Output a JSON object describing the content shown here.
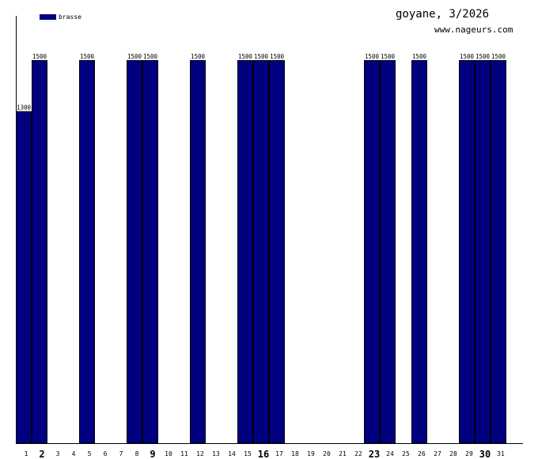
{
  "title": "goyane, 3/2026",
  "site": "www.nageurs.com",
  "chart_data": {
    "type": "bar",
    "series": [
      {
        "name": "brasse",
        "color": "#000080",
        "values": [
          1300,
          1500,
          0,
          0,
          1500,
          0,
          0,
          1500,
          1500,
          0,
          0,
          1500,
          0,
          0,
          1500,
          1500,
          1500,
          0,
          0,
          0,
          0,
          0,
          1500,
          1500,
          0,
          1500,
          0,
          0,
          1500,
          1500,
          1500
        ]
      }
    ],
    "categories": [
      "1",
      "2",
      "3",
      "4",
      "5",
      "6",
      "7",
      "8",
      "9",
      "10",
      "11",
      "12",
      "13",
      "14",
      "15",
      "16",
      "17",
      "18",
      "19",
      "20",
      "21",
      "22",
      "23",
      "24",
      "25",
      "26",
      "27",
      "28",
      "29",
      "30",
      "31"
    ],
    "emphasized_categories": [
      "2",
      "9",
      "16",
      "23",
      "30"
    ],
    "ylim": [
      0,
      1600
    ],
    "grid": false,
    "legend": "top-left"
  }
}
